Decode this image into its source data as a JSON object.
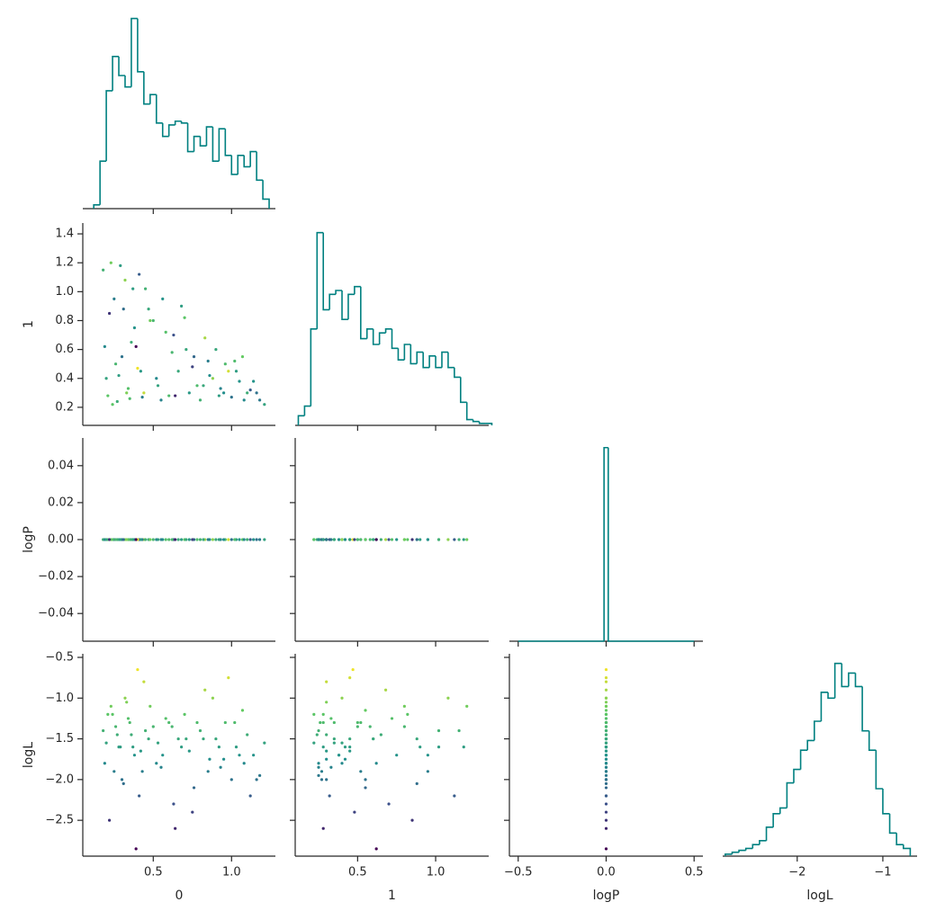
{
  "chart_data": {
    "type": "pairplot",
    "corner": true,
    "hist_color": "#008080",
    "colormap": [
      "#440154",
      "#3b528b",
      "#21918c",
      "#5ec962",
      "#fde725"
    ],
    "color_by": "logL",
    "clim": [
      -2.85,
      -0.6
    ],
    "variables": [
      {
        "name": "0",
        "values": [
          0.18,
          0.21,
          0.25,
          0.28,
          0.32,
          0.35,
          0.38,
          0.41,
          0.44,
          0.47,
          0.19,
          0.23,
          0.27,
          0.3,
          0.34,
          0.37,
          0.4,
          0.43,
          0.5,
          0.53,
          0.56,
          0.6,
          0.63,
          0.66,
          0.7,
          0.73,
          0.76,
          0.8,
          0.83,
          0.86,
          0.9,
          0.93,
          0.96,
          1.0,
          1.03,
          1.07,
          1.1,
          1.14,
          1.18,
          1.21,
          0.22,
          0.26,
          0.29,
          0.33,
          0.39,
          0.45,
          0.52,
          0.58,
          0.64,
          0.71,
          0.78,
          0.85,
          0.92,
          0.98,
          1.05,
          1.12,
          0.2,
          0.24,
          0.31,
          0.36,
          0.42,
          0.48,
          0.55,
          0.62,
          0.68,
          0.75,
          0.82,
          0.88,
          0.95,
          1.02,
          1.08,
          1.16
        ],
        "xlim": [
          0.05,
          1.28
        ],
        "xticks": [
          0.5,
          {
            "value": 1,
            "label": "1.0"
          }
        ],
        "hist": {
          "bins": [
            0.12,
            0.16,
            0.2,
            0.24,
            0.28,
            0.32,
            0.36,
            0.4,
            0.44,
            0.48,
            0.52,
            0.56,
            0.6,
            0.64,
            0.68,
            0.72,
            0.76,
            0.8,
            0.84,
            0.88,
            0.92,
            0.96,
            1.0,
            1.04,
            1.08,
            1.12,
            1.16,
            1.2,
            1.24
          ],
          "counts": [
            2,
            25,
            62,
            80,
            70,
            64,
            100,
            72,
            55,
            60,
            45,
            38,
            44,
            46,
            45,
            30,
            38,
            33,
            43,
            25,
            42,
            28,
            18,
            28,
            22,
            30,
            15,
            5
          ],
          "ylim": [
            0,
            105
          ]
        }
      },
      {
        "name": "1",
        "values": [
          1.15,
          0.28,
          0.95,
          0.42,
          1.08,
          0.26,
          0.75,
          1.12,
          0.3,
          0.88,
          0.62,
          1.2,
          0.24,
          0.55,
          0.33,
          1.02,
          0.47,
          0.27,
          0.8,
          0.35,
          0.95,
          0.28,
          0.7,
          0.45,
          0.82,
          0.3,
          0.55,
          0.25,
          0.68,
          0.42,
          0.6,
          0.33,
          0.5,
          0.27,
          0.45,
          0.55,
          0.3,
          0.38,
          0.25,
          0.22,
          0.85,
          0.5,
          1.18,
          0.3,
          0.62,
          1.02,
          0.4,
          0.72,
          0.28,
          0.6,
          0.35,
          0.52,
          0.28,
          0.45,
          0.38,
          0.32,
          0.4,
          0.22,
          0.88,
          0.65,
          0.45,
          0.8,
          0.25,
          0.58,
          0.9,
          0.48,
          0.35,
          0.4,
          0.3,
          0.52,
          0.25,
          0.3
        ],
        "xlim": [
          0.1,
          1.34
        ],
        "xticks": [
          0.5,
          {
            "value": 1,
            "label": "1.0"
          }
        ],
        "ylim": [
          0.075,
          1.475
        ],
        "yticks": [
          0.2,
          0.4,
          0.6,
          0.8,
          {
            "value": 1,
            "label": "1.0"
          },
          1.2,
          1.4
        ],
        "hist": {
          "bins": [
            0.12,
            0.16,
            0.2,
            0.24,
            0.28,
            0.32,
            0.36,
            0.4,
            0.44,
            0.48,
            0.52,
            0.56,
            0.6,
            0.64,
            0.68,
            0.72,
            0.76,
            0.8,
            0.84,
            0.88,
            0.92,
            0.96,
            1.0,
            1.04,
            1.08,
            1.12,
            1.16,
            1.2,
            1.24,
            1.28,
            1.32,
            1.36
          ],
          "counts": [
            5,
            10,
            50,
            100,
            60,
            68,
            70,
            55,
            68,
            72,
            45,
            50,
            42,
            48,
            50,
            40,
            34,
            42,
            32,
            38,
            30,
            36,
            30,
            38,
            30,
            25,
            12,
            3,
            2,
            1,
            1
          ],
          "ylim": [
            0,
            105
          ]
        }
      },
      {
        "name": "logP",
        "values": [
          0,
          0,
          0,
          0,
          0,
          0,
          0,
          0,
          0,
          0,
          0,
          0,
          0,
          0,
          0,
          0,
          0,
          0,
          0,
          0,
          0,
          0,
          0,
          0,
          0,
          0,
          0,
          0,
          0,
          0,
          0,
          0,
          0,
          0,
          0,
          0,
          0,
          0,
          0,
          0,
          0,
          0,
          0,
          0,
          0,
          0,
          0,
          0,
          0,
          0,
          0,
          0,
          0,
          0,
          0,
          0,
          0,
          0,
          0,
          0,
          0,
          0,
          0,
          0,
          0,
          0,
          0,
          0,
          0,
          0,
          0,
          0
        ],
        "xlim": [
          -0.55,
          0.55
        ],
        "xticks": [
          {
            "value": -0.5,
            "label": "−0.5"
          },
          {
            "value": 0,
            "label": "0.0"
          },
          0.5
        ],
        "ylim": [
          -0.055,
          0.055
        ],
        "yticks": [
          {
            "value": -0.04,
            "label": "−0.04"
          },
          {
            "value": -0.02,
            "label": "−0.02"
          },
          {
            "value": 0,
            "label": "0.00"
          },
          0.02,
          0.04
        ],
        "hist": {
          "bins": [
            -0.5,
            -0.012,
            0.012,
            0.5
          ],
          "counts": [
            0,
            100,
            0
          ],
          "ylim": [
            0,
            105
          ]
        }
      },
      {
        "name": "logL",
        "values": [
          -1.4,
          -1.2,
          -1.9,
          -1.6,
          -1.0,
          -1.3,
          -1.7,
          -2.2,
          -0.8,
          -1.5,
          -1.8,
          -1.1,
          -1.45,
          -2.0,
          -1.25,
          -1.6,
          -0.65,
          -1.9,
          -1.35,
          -1.55,
          -1.7,
          -1.3,
          -2.3,
          -1.5,
          -1.2,
          -1.65,
          -2.1,
          -1.4,
          -0.9,
          -1.75,
          -1.5,
          -1.85,
          -1.3,
          -2.0,
          -1.6,
          -1.15,
          -1.45,
          -1.7,
          -1.95,
          -1.55,
          -2.5,
          -1.35,
          -1.6,
          -1.05,
          -2.85,
          -1.4,
          -1.8,
          -1.25,
          -2.6,
          -1.5,
          -1.3,
          -1.9,
          -1.6,
          -0.75,
          -1.7,
          -2.2,
          -1.55,
          -1.2,
          -2.05,
          -1.45,
          -1.65,
          -1.1,
          -1.85,
          -1.35,
          -1.6,
          -2.4,
          -1.5,
          -1.0,
          -1.75,
          -1.3,
          -1.8,
          -2.0
        ],
        "xlim": [
          -2.87,
          -0.6
        ],
        "xticks": [
          {
            "value": -2,
            "label": "−2"
          },
          {
            "value": -1,
            "label": "−1"
          }
        ],
        "ylim": [
          -2.94,
          -0.456
        ],
        "yticks": [
          {
            "value": -0.5,
            "label": "−0.5"
          },
          {
            "value": -1,
            "label": "−1.0"
          },
          {
            "value": -1.5,
            "label": "−1.5"
          },
          {
            "value": -2,
            "label": "−2.0"
          },
          {
            "value": -2.5,
            "label": "−2.5"
          }
        ],
        "hist": {
          "bins": [
            -2.84,
            -2.76,
            -2.68,
            -2.6,
            -2.52,
            -2.44,
            -2.36,
            -2.28,
            -2.2,
            -2.12,
            -2.04,
            -1.96,
            -1.88,
            -1.8,
            -1.72,
            -1.64,
            -1.56,
            -1.48,
            -1.4,
            -1.32,
            -1.24,
            -1.16,
            -1.08,
            -1.0,
            -0.92,
            -0.84,
            -0.76,
            -0.68
          ],
          "counts": [
            1,
            2,
            3,
            4,
            6,
            8,
            15,
            22,
            25,
            38,
            45,
            55,
            60,
            70,
            85,
            82,
            100,
            88,
            95,
            88,
            65,
            55,
            35,
            22,
            12,
            6,
            4
          ],
          "ylim": [
            0,
            105
          ]
        }
      }
    ]
  }
}
